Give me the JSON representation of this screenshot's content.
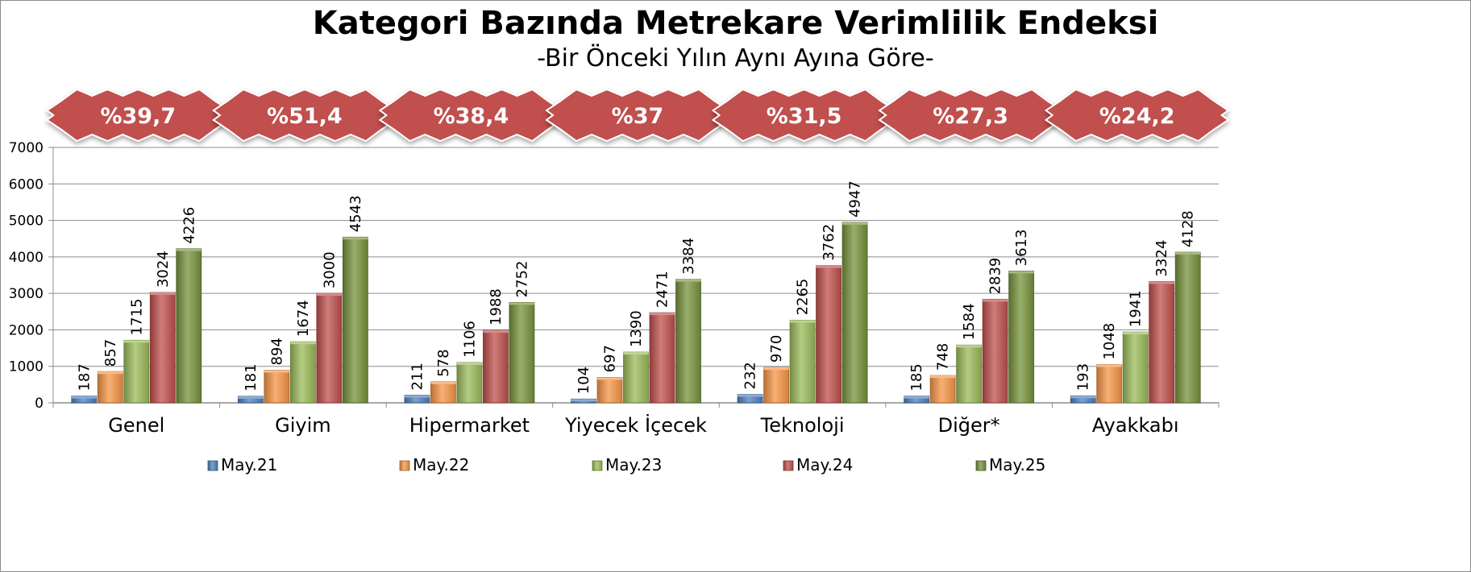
{
  "chart_data": {
    "type": "bar",
    "title": "Kategori Bazında Metrekare Verimlilik Endeksi",
    "subtitle": "-Bir Önceki Yılın Aynı Ayına Göre-",
    "categories": [
      "Genel",
      "Giyim",
      "Hipermarket",
      "Yiyecek İçecek",
      "Teknoloji",
      "Diğer*",
      "Ayakkabı"
    ],
    "series": [
      {
        "name": "May.21",
        "color": "#4f81bd",
        "values": [
          187,
          181,
          211,
          104,
          232,
          185,
          193
        ]
      },
      {
        "name": "May.22",
        "color": "#f79646",
        "values": [
          857,
          894,
          578,
          697,
          970,
          748,
          1048
        ]
      },
      {
        "name": "May.23",
        "color": "#9bbb59",
        "values": [
          1715,
          1674,
          1106,
          1390,
          2265,
          1584,
          1941
        ]
      },
      {
        "name": "May.24",
        "color": "#c0504d",
        "values": [
          3024,
          3000,
          1988,
          2471,
          3762,
          2839,
          3324
        ]
      },
      {
        "name": "May.25",
        "color": "#77933c",
        "values": [
          4226,
          4543,
          2752,
          3384,
          4947,
          3613,
          4128
        ]
      }
    ],
    "growth_badges": [
      "%39,7",
      "%51,4",
      "%38,4",
      "%37",
      "%31,5",
      "%27,3",
      "%24,2"
    ],
    "badge_color": "#c0504d",
    "ylim": [
      0,
      7000
    ],
    "yticks": [
      0,
      1000,
      2000,
      3000,
      4000,
      5000,
      6000,
      7000
    ],
    "xlabel": "",
    "ylabel": "",
    "grid": true,
    "legend_position": "bottom"
  }
}
